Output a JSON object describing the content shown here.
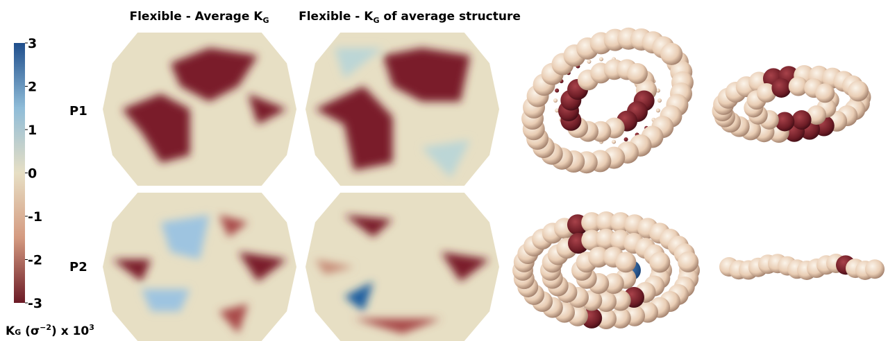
{
  "column_titles": [
    [
      "Flexible - Average K",
      "G"
    ],
    [
      "Flexible - K",
      "G",
      " of average structure"
    ]
  ],
  "row_labels": [
    "P1",
    "P2"
  ],
  "colorbar": {
    "ticks": [
      3,
      2,
      1,
      0,
      -1,
      -2,
      -3
    ],
    "label": [
      "K",
      "G",
      " (σ",
      "−2",
      ") x 10",
      "3"
    ]
  }
}
